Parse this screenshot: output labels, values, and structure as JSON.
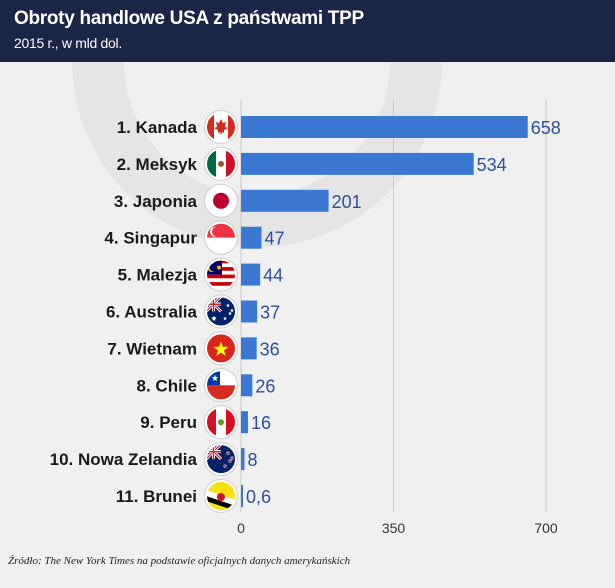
{
  "header": {
    "title": "Obroty handlowe USA z państwami TPP",
    "subtitle": "2015 r., w mld dol."
  },
  "source": "Źródło: The New York Times na podstawie oficjalnych danych amerykańskich",
  "colors": {
    "bar": "#3a78d4",
    "header_bg": "#1b2547",
    "value_text": "#2c4f9e",
    "background": "#f0f0f0"
  },
  "chart_data": {
    "type": "bar",
    "orientation": "horizontal",
    "title": "Obroty handlowe USA z państwami TPP",
    "subtitle": "2015 r., w mld dol.",
    "categories": [
      "1. Kanada",
      "2. Meksyk",
      "3. Japonia",
      "4. Singapur",
      "5. Malezja",
      "6. Australia",
      "7. Wietnam",
      "8. Chile",
      "9. Peru",
      "10. Nowa Zelandia",
      "11. Brunei"
    ],
    "flags": [
      "flag-canada-icon",
      "flag-mexico-icon",
      "flag-japan-icon",
      "flag-singapore-icon",
      "flag-malaysia-icon",
      "flag-australia-icon",
      "flag-vietnam-icon",
      "flag-chile-icon",
      "flag-peru-icon",
      "flag-new-zealand-icon",
      "flag-brunei-icon"
    ],
    "values": [
      658,
      534,
      201,
      47,
      44,
      37,
      36,
      26,
      16,
      8,
      0.6
    ],
    "value_labels": [
      "658",
      "534",
      "201",
      "47",
      "44",
      "37",
      "36",
      "26",
      "16",
      "8",
      "0,6"
    ],
    "xlim": [
      0,
      700
    ],
    "x_ticks": [
      0,
      350,
      700
    ],
    "x_tick_labels": [
      "0",
      "350",
      "700"
    ],
    "grid": true
  }
}
